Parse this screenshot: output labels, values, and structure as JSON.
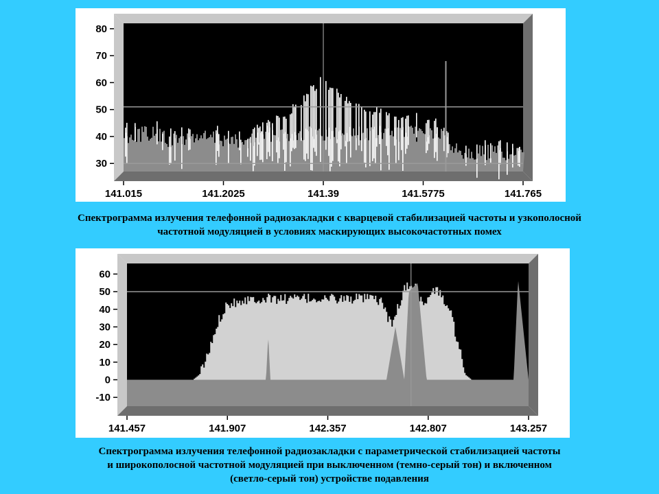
{
  "colors": {
    "background": "#33ccff",
    "plot_bg": "#000000",
    "frame_light": "#c8c8c8",
    "frame_dark": "#6e6e6e",
    "dark_gray_series": "#8c8c8c",
    "light_gray_series": "#d2d2d2",
    "white_series": "#ffffff",
    "marker": "#9a9a9a"
  },
  "chart_data": [
    {
      "type": "area",
      "title": "",
      "xlabel": "",
      "ylabel": "",
      "xlim": [
        141.015,
        141.765
      ],
      "ylim": [
        27,
        82
      ],
      "x_ticks": [
        "141.015",
        "141.2025",
        "141.39",
        "141.5775",
        "141.765"
      ],
      "x_tick_values": [
        141.015,
        141.2025,
        141.39,
        141.5775,
        141.765
      ],
      "y_ticks": [
        "30",
        "40",
        "50",
        "60",
        "70",
        "80"
      ],
      "y_tick_values": [
        30,
        40,
        50,
        60,
        70,
        80
      ],
      "reference_lines": {
        "horizontal": [
          51,
          30
        ],
        "vertical": [
          141.39,
          141.62
        ]
      },
      "series": [
        {
          "x": [
            141.015,
            141.06,
            141.1,
            141.15,
            141.2,
            141.24,
            141.27,
            141.3,
            141.33,
            141.35,
            141.37,
            141.38,
            141.39,
            141.4,
            141.42,
            141.44,
            141.47,
            141.5,
            141.53,
            141.56,
            141.6,
            141.64,
            141.68,
            141.72,
            141.765
          ],
          "values": [
            43,
            46,
            41,
            43,
            42,
            40,
            43,
            46,
            50,
            53,
            58,
            60,
            61,
            59,
            56,
            52,
            50,
            49,
            47,
            49,
            45,
            38,
            37,
            37,
            36
          ]
        }
      ],
      "spike": {
        "x": 141.62,
        "value": 68
      }
    },
    {
      "type": "area",
      "title": "",
      "xlabel": "",
      "ylabel": "",
      "xlim": [
        141.457,
        143.257
      ],
      "ylim": [
        -15,
        66
      ],
      "x_ticks": [
        "141.457",
        "141.907",
        "142.357",
        "142.807",
        "143.257"
      ],
      "x_tick_values": [
        141.457,
        141.907,
        142.357,
        142.807,
        143.257
      ],
      "y_ticks": [
        "60",
        "50",
        "40",
        "30",
        "20",
        "10",
        "0",
        "-10"
      ],
      "y_tick_values": [
        60,
        50,
        40,
        30,
        20,
        10,
        0,
        -10
      ],
      "reference_lines": {
        "horizontal": [
          50
        ],
        "vertical": [
          142.73
        ]
      },
      "series": [
        {
          "name": "light",
          "x": [
            141.75,
            141.78,
            141.82,
            141.86,
            141.9,
            142.0,
            142.2,
            142.4,
            142.55,
            142.6,
            142.64,
            142.66,
            142.7,
            142.74,
            142.78,
            142.84,
            142.9,
            142.94,
            142.97,
            143.0
          ],
          "values": [
            0,
            3,
            15,
            32,
            43,
            46,
            46,
            46,
            46,
            44,
            30,
            38,
            52,
            55,
            42,
            52,
            40,
            20,
            3,
            0
          ]
        },
        {
          "name": "dark",
          "x": [
            141.457,
            142.08,
            142.09,
            142.1,
            142.62,
            142.66,
            142.7,
            142.72,
            142.76,
            142.8,
            143.19,
            143.21,
            143.257
          ],
          "values": [
            0,
            0,
            25,
            0,
            0,
            30,
            0,
            50,
            55,
            0,
            0,
            57,
            0
          ]
        }
      ]
    }
  ],
  "captions": {
    "caption1": {
      "line1": "Спектрограмма излучения телефонной радиозакладки с кварцевой стабилизацией частоты и узкополосной",
      "line2": "частотной модуляцией в условиях маскирующих высокочастотных помех"
    },
    "caption2": {
      "line1": "Спектрограмма  излучения телефонной  радиозакладки  с параметрической стабилизацией частоты",
      "line2": "и широкополосной частотной модуляцией при выключенном (темно-серый тон)  и включенном",
      "line3": "(светло-серый тон) устройстве подавления"
    }
  }
}
